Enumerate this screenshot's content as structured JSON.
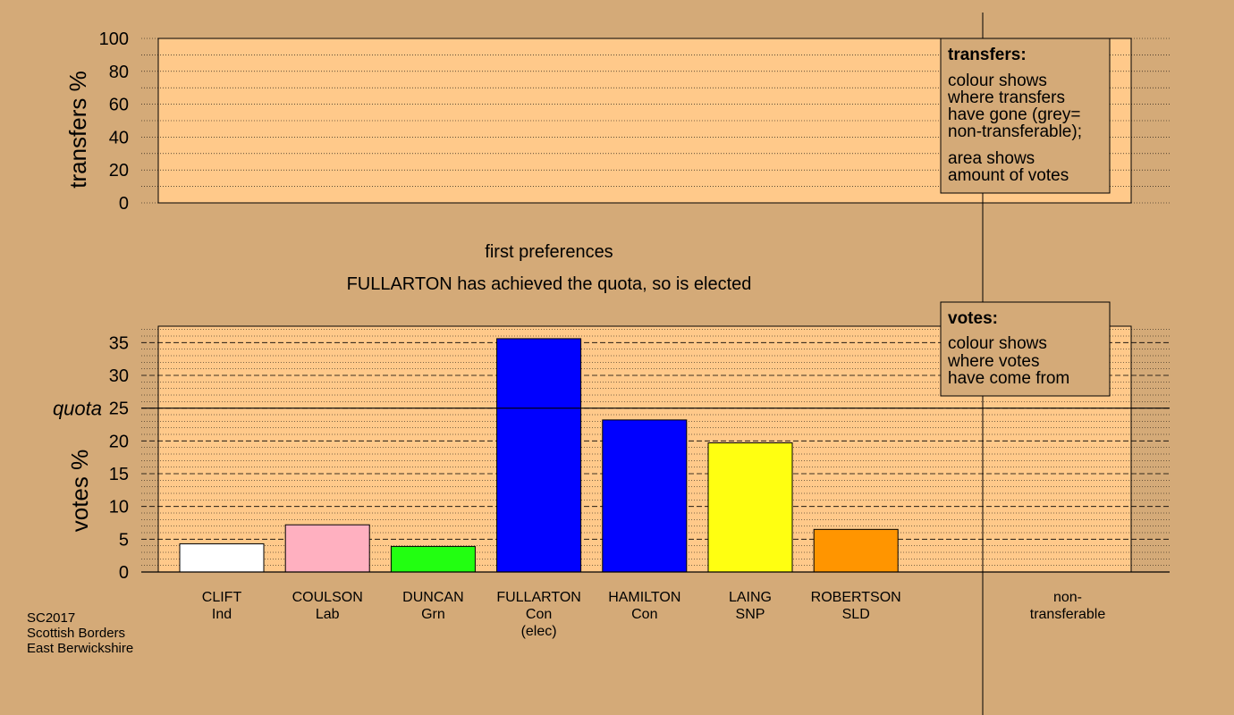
{
  "stage_title": "first preferences",
  "stage_note": "FULLARTON has achieved the quota, so is elected",
  "footer": [
    "SC2017",
    "Scottish Borders",
    "East Berwickshire"
  ],
  "transfers_legend": {
    "title": "transfers:",
    "lines1": [
      "colour shows",
      "where transfers",
      "have gone (grey=",
      "non-transferable);"
    ],
    "lines2": [
      "area shows",
      "amount of votes"
    ]
  },
  "votes_legend": {
    "title": "votes:",
    "lines": [
      "colour shows",
      "where votes",
      "have come from"
    ]
  },
  "colors": {
    "background": "#d4aa78",
    "plot_fill": "#ffc98a",
    "legend_fill": "#d4aa78"
  },
  "chart_data": [
    {
      "type": "bar",
      "ylabel": "transfers %",
      "ylim": [
        0,
        100
      ],
      "yticks": [
        0,
        20,
        40,
        60,
        80,
        100
      ],
      "categories": [],
      "values": []
    },
    {
      "type": "bar",
      "ylabel": "votes %",
      "ylim": [
        0,
        37.5
      ],
      "yticks": [
        0,
        5,
        10,
        15,
        20,
        25,
        30,
        35
      ],
      "quota": 25,
      "quota_label": "quota",
      "categories": [
        {
          "name": "CLIFT",
          "party": "Ind",
          "extra": "",
          "color": "#ffffff"
        },
        {
          "name": "COULSON",
          "party": "Lab",
          "extra": "",
          "color": "#ffb0c0"
        },
        {
          "name": "DUNCAN",
          "party": "Grn",
          "extra": "",
          "color": "#22ff11"
        },
        {
          "name": "FULLARTON",
          "party": "Con",
          "extra": "(elec)",
          "color": "#0000ff"
        },
        {
          "name": "HAMILTON",
          "party": "Con",
          "extra": "",
          "color": "#0000ff"
        },
        {
          "name": "LAING",
          "party": "SNP",
          "extra": "",
          "color": "#ffff11"
        },
        {
          "name": "ROBERTSON",
          "party": "SLD",
          "extra": "",
          "color": "#ff9500"
        }
      ],
      "values": [
        4.3,
        7.2,
        3.9,
        35.6,
        23.2,
        19.7,
        6.5
      ],
      "non_transferable_label": [
        "non-",
        "transferable"
      ]
    }
  ]
}
